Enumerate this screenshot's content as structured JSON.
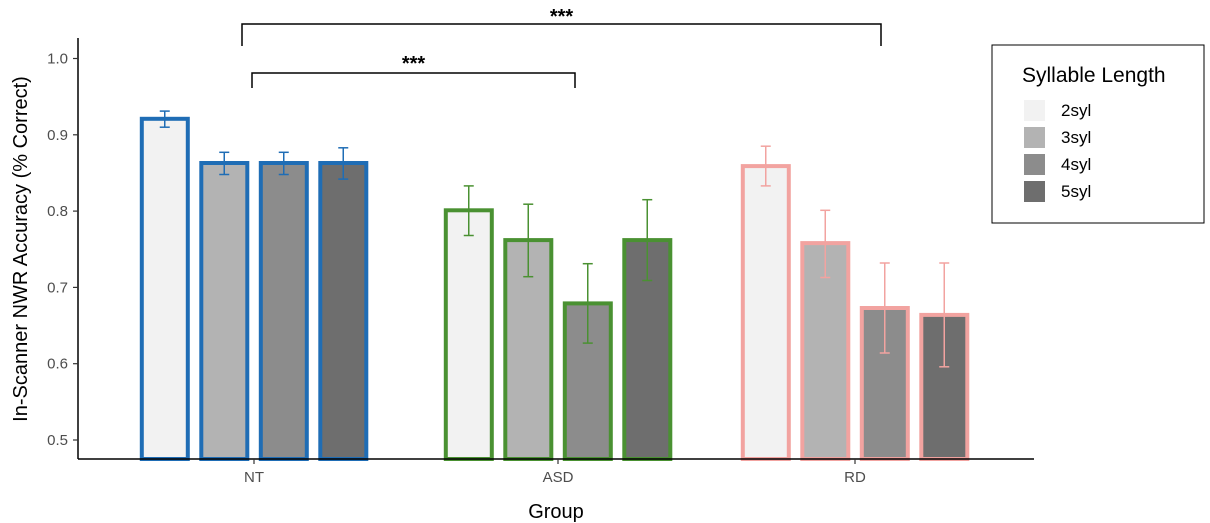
{
  "chart_data": {
    "type": "bar",
    "xlabel": "Group",
    "ylabel": "In-Scanner NWR Accuracy (% Correct)",
    "ylim": [
      0.5,
      1.0
    ],
    "y_ticks": [
      "0.5",
      "0.6",
      "0.7",
      "0.8",
      "0.9",
      "1.0"
    ],
    "grid": false,
    "categories": [
      "NT",
      "ASD",
      "RD"
    ],
    "group_outline_colors": [
      "#1f6db5",
      "#4a9132",
      "#f2a3a0"
    ],
    "series": [
      {
        "name": "2syl",
        "fill": "#f2f2f2",
        "values": [
          0.921,
          0.801,
          0.859
        ],
        "err_low": [
          0.91,
          0.768,
          0.833
        ],
        "err_high": [
          0.931,
          0.833,
          0.885
        ]
      },
      {
        "name": "3syl",
        "fill": "#b3b3b3",
        "values": [
          0.863,
          0.762,
          0.758
        ],
        "err_low": [
          0.848,
          0.714,
          0.713
        ],
        "err_high": [
          0.877,
          0.809,
          0.801
        ]
      },
      {
        "name": "4syl",
        "fill": "#8c8c8c",
        "values": [
          0.863,
          0.679,
          0.673
        ],
        "err_low": [
          0.848,
          0.627,
          0.614
        ],
        "err_high": [
          0.877,
          0.731,
          0.732
        ]
      },
      {
        "name": "5syl",
        "fill": "#6e6e6e",
        "values": [
          0.863,
          0.762,
          0.664
        ],
        "err_low": [
          0.842,
          0.709,
          0.596
        ],
        "err_high": [
          0.883,
          0.815,
          0.732
        ]
      }
    ],
    "legend": {
      "title": "Syllable Length",
      "position": "right"
    },
    "annotations": [
      {
        "label": "***",
        "from": "NT",
        "to": "RD"
      },
      {
        "label": "***",
        "from": "NT",
        "to": "ASD"
      }
    ]
  }
}
